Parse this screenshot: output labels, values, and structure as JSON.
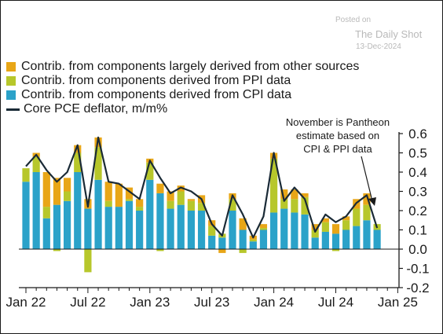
{
  "watermark": {
    "posted_label": "Posted on",
    "source": "The Daily Shot",
    "date": "13-Dec-2024"
  },
  "legend": [
    {
      "label": "Contrib. from components largely derived from other sources",
      "color": "#e8a617",
      "kind": "bar"
    },
    {
      "label": "Contrib. from components derived from PPI data",
      "color": "#b7c72b",
      "kind": "bar"
    },
    {
      "label": "Contrib. from components derived from CPI data",
      "color": "#2ba2c9",
      "kind": "bar"
    },
    {
      "label": "Core PCE deflator, m/m%",
      "color": "#1a2a36",
      "kind": "line"
    }
  ],
  "annotation": {
    "lines": [
      "November is Pantheon",
      "estimate based on",
      "CPI & PPI data"
    ]
  },
  "chart_data": {
    "type": "bar",
    "stacked": true,
    "categories": [
      "Jan 22",
      "Feb 22",
      "Mar 22",
      "Apr 22",
      "May 22",
      "Jun 22",
      "Jul 22",
      "Aug 22",
      "Sep 22",
      "Oct 22",
      "Nov 22",
      "Dec 22",
      "Jan 23",
      "Feb 23",
      "Mar 23",
      "Apr 23",
      "May 23",
      "Jun 23",
      "Jul 23",
      "Aug 23",
      "Sep 23",
      "Oct 23",
      "Nov 23",
      "Dec 23",
      "Jan 24",
      "Feb 24",
      "Mar 24",
      "Apr 24",
      "May 24",
      "Jun 24",
      "Jul 24",
      "Aug 24",
      "Sep 24",
      "Oct 24",
      "Nov 24"
    ],
    "series": [
      {
        "name": "Contrib. from components derived from CPI data",
        "values": [
          0.35,
          0.4,
          0.16,
          0.23,
          0.25,
          0.4,
          0.21,
          0.36,
          0.22,
          0.22,
          0.25,
          0.2,
          0.36,
          0.29,
          0.21,
          0.23,
          0.2,
          0.2,
          0.07,
          0.06,
          0.2,
          0.1,
          0.04,
          0.1,
          0.19,
          0.21,
          0.19,
          0.18,
          0.06,
          0.09,
          0.08,
          0.1,
          0.12,
          0.15,
          0.1
        ]
      },
      {
        "name": "Contrib. from components derived from PPI data",
        "values": [
          0.07,
          0.08,
          0.06,
          -0.01,
          0.05,
          0.1,
          -0.12,
          0.17,
          0.03,
          0.0,
          0.01,
          0.02,
          0.09,
          -0.01,
          0.04,
          0.07,
          0.05,
          0.04,
          0.05,
          0.02,
          0.06,
          -0.02,
          0.01,
          0.01,
          0.28,
          0.05,
          0.07,
          0.09,
          0.04,
          0.05,
          -0.01,
          0.05,
          0.09,
          0.08,
          0.03
        ]
      },
      {
        "name": "Contrib. from components largely derived from other sources",
        "values": [
          0.0,
          0.02,
          0.18,
          0.14,
          0.07,
          0.04,
          0.05,
          0.05,
          0.1,
          0.12,
          0.06,
          0.04,
          0.02,
          0.05,
          0.05,
          0.03,
          0.01,
          0.04,
          0.03,
          -0.02,
          0.03,
          0.06,
          0.02,
          0.02,
          0.03,
          0.05,
          0.05,
          0.02,
          0.03,
          0.02,
          0.05,
          0.02,
          0.05,
          0.06,
          0.0
        ]
      },
      {
        "name": "Core PCE deflator, m/m%",
        "type": "line",
        "values": [
          0.43,
          0.49,
          0.41,
          0.35,
          0.4,
          0.54,
          0.22,
          0.58,
          0.35,
          0.34,
          0.3,
          0.26,
          0.46,
          0.37,
          0.29,
          0.32,
          0.3,
          0.26,
          0.13,
          0.07,
          0.28,
          0.18,
          0.06,
          0.17,
          0.5,
          0.25,
          0.32,
          0.26,
          0.09,
          0.18,
          0.14,
          0.17,
          0.24,
          0.28,
          0.11
        ]
      }
    ],
    "y_axis": {
      "min": -0.2,
      "max": 0.6,
      "ticks": [
        "0.6",
        "0.5",
        "0.4",
        "0.3",
        "0.2",
        "0.1",
        "0.0",
        "-0.1",
        "-0.2"
      ],
      "side": "right"
    },
    "x_axis": {
      "tick_labels": [
        "Jan 22",
        "Jul 22",
        "Jan 23",
        "Jul 23",
        "Jan 24",
        "Jul 24",
        "Jan 25"
      ]
    },
    "grid": false
  }
}
